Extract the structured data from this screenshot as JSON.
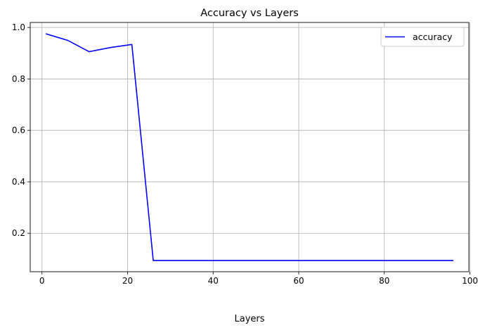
{
  "chart_data": {
    "type": "line",
    "title": "Accuracy vs Layers",
    "xlabel": "Layers",
    "ylabel": "",
    "xlim": [
      -2.75,
      99.75
    ],
    "ylim": [
      0.0505,
      1.0195
    ],
    "xticks": [
      0,
      20,
      40,
      60,
      80,
      100
    ],
    "xtick_labels": [
      "0",
      "20",
      "40",
      "60",
      "80",
      "100"
    ],
    "yticks": [
      0.2,
      0.4,
      0.6,
      0.8,
      1.0
    ],
    "ytick_labels": [
      "0.2",
      "0.4",
      "0.6",
      "0.8",
      "1.0"
    ],
    "grid": true,
    "legend_position": "top-right",
    "series": [
      {
        "name": "accuracy",
        "color": "#0000ff",
        "x": [
          1,
          6,
          11,
          16,
          21,
          26,
          31,
          36,
          41,
          46,
          51,
          56,
          61,
          66,
          71,
          76,
          81,
          86,
          91,
          96
        ],
        "y": [
          0.975,
          0.95,
          0.906,
          0.922,
          0.934,
          0.094,
          0.094,
          0.094,
          0.094,
          0.094,
          0.094,
          0.094,
          0.094,
          0.094,
          0.094,
          0.094,
          0.094,
          0.094,
          0.094,
          0.094
        ]
      }
    ],
    "colors": {
      "grid": "#b0b0b0",
      "axes": "#000000",
      "background": "#ffffff"
    }
  }
}
